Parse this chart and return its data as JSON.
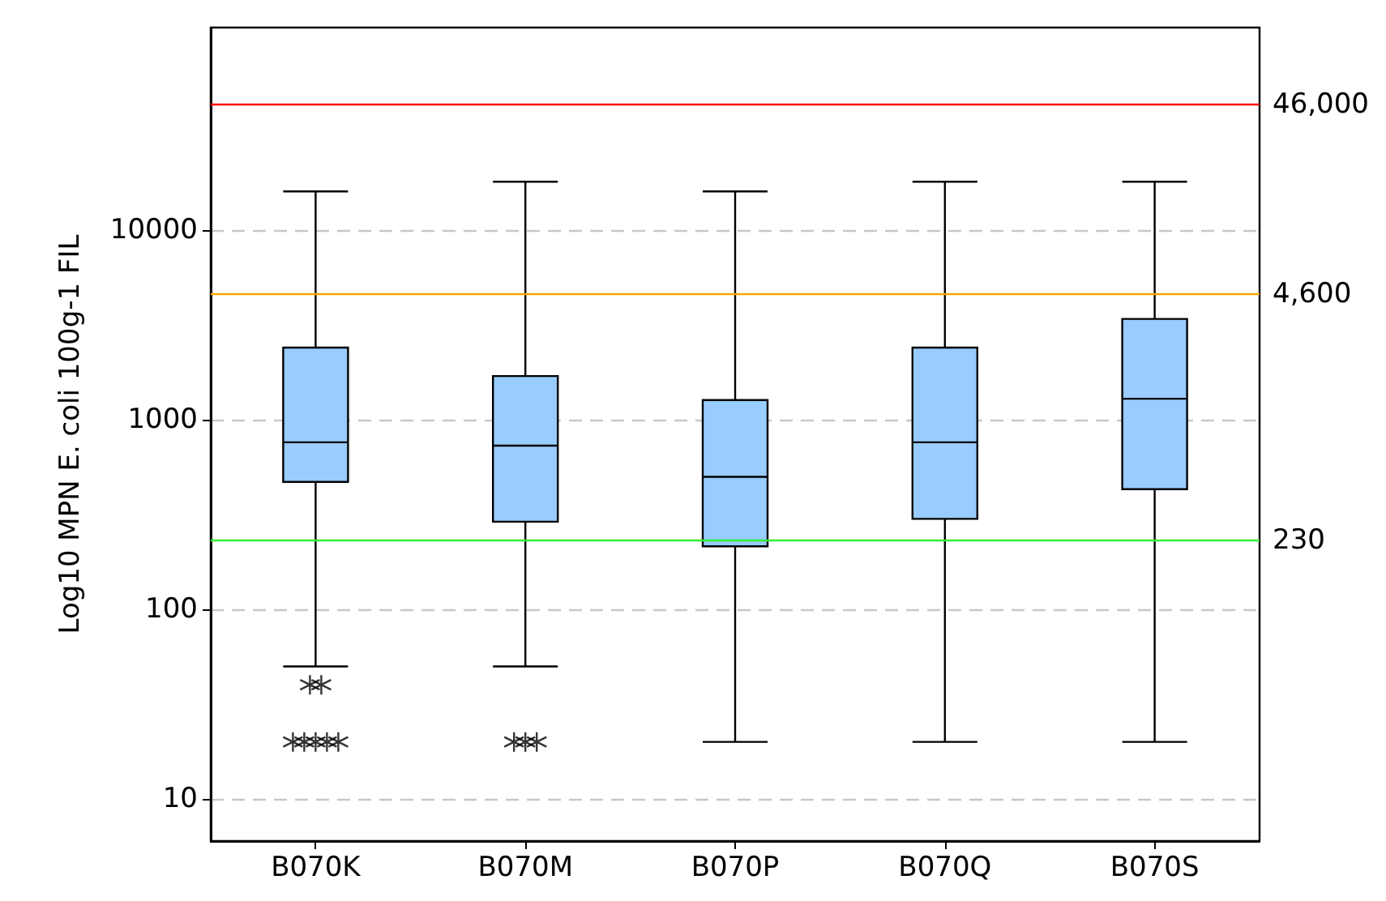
{
  "chart_data": {
    "type": "box",
    "ylabel": "Log10 MPN E. coli 100g-1 FIL",
    "categories": [
      "B070K",
      "B070M",
      "B070P",
      "B070Q",
      "B070S"
    ],
    "series": [
      {
        "color": "#99ccff",
        "boxes": [
          {
            "low": 50,
            "q1": 470,
            "median": 760,
            "q3": 2400,
            "high": 16000,
            "outliers": [
              40,
              40,
              20,
              20,
              20,
              20,
              20
            ]
          },
          {
            "low": 50,
            "q1": 290,
            "median": 730,
            "q3": 1700,
            "high": 18000,
            "outliers": [
              20,
              20,
              20
            ]
          },
          {
            "low": 20,
            "q1": 215,
            "median": 500,
            "q3": 1270,
            "high": 16000
          },
          {
            "low": 20,
            "q1": 300,
            "median": 760,
            "q3": 2400,
            "high": 18000
          },
          {
            "low": 20,
            "q1": 430,
            "median": 1290,
            "q3": 3400,
            "high": 18000
          }
        ]
      }
    ],
    "log": "y",
    "ylim": [
      6,
      117000
    ],
    "yticks": [
      10,
      100,
      1000,
      10000
    ],
    "grid": "y",
    "ref_lines": [
      {
        "axis": "y",
        "value": 46000,
        "label": "46,000",
        "color": "#ff0000"
      },
      {
        "axis": "y",
        "value": 4600,
        "label": "4,600",
        "color": "#ffa500"
      },
      {
        "axis": "y",
        "value": 230,
        "label": "230",
        "color": "#33ee33"
      }
    ]
  }
}
